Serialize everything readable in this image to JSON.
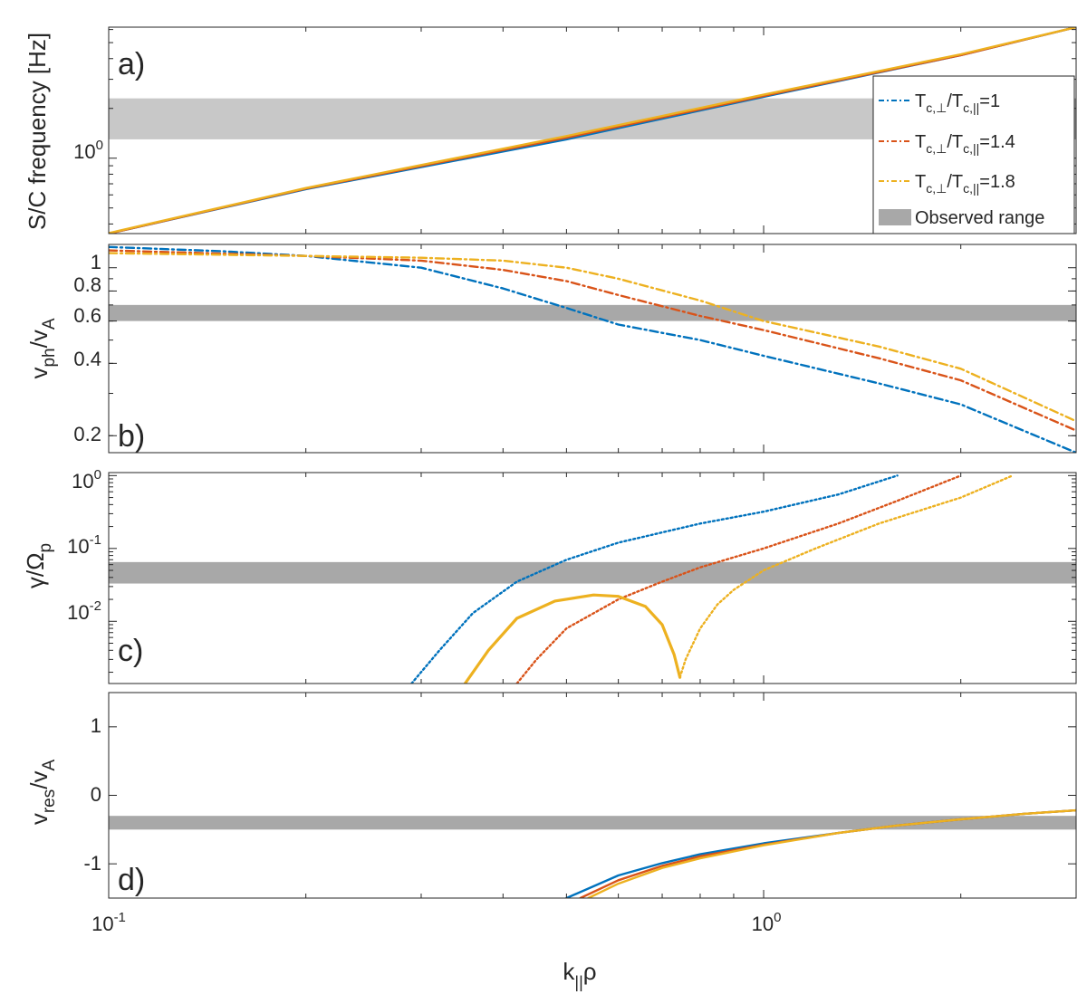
{
  "figure": {
    "xlabel_main": "k",
    "xlabel_sub": "||",
    "xlabel_rho": "ρ",
    "xticks": [
      {
        "value": 0.1,
        "base": "10",
        "exp": "-1"
      },
      {
        "value": 1,
        "base": "10",
        "exp": "0"
      }
    ],
    "xlim": [
      0.1,
      3.0
    ]
  },
  "colors": {
    "blue": "#0072BD",
    "red": "#D95319",
    "yellow": "#EDB120",
    "band_light": "#c8c8c8",
    "band_dark": "#a8a8a8",
    "axis": "#262626"
  },
  "legend": {
    "entries": [
      {
        "sym": "T",
        "sub": "c,⊥",
        "slash": "/",
        "sym2": "T",
        "sub2": "c,||",
        "value": "=1",
        "color": "#0072BD",
        "style": "dashdot"
      },
      {
        "sym": "T",
        "sub": "c,⊥",
        "slash": "/",
        "sym2": "T",
        "sub2": "c,||",
        "value": "=1.4",
        "color": "#D95319",
        "style": "dashdot"
      },
      {
        "sym": "T",
        "sub": "c,⊥",
        "slash": "/",
        "sym2": "T",
        "sub2": "c,||",
        "value": "=1.8",
        "color": "#EDB120",
        "style": "dashdot"
      },
      {
        "label": "Observed range",
        "color": "#a8a8a8",
        "style": "patch"
      }
    ]
  },
  "chart_data": [
    {
      "type": "line",
      "panel": "a)",
      "ylabel": "S/C frequency [Hz]",
      "yscale": "log",
      "ylim": [
        0.35,
        6.2
      ],
      "yticks": [
        {
          "value": 1,
          "base": "10",
          "exp": "0"
        }
      ],
      "observed_band": [
        1.3,
        2.3
      ],
      "series": [
        {
          "name": "Tc⊥/Tc||=1",
          "color": "#0072BD",
          "style": "solid",
          "x": [
            0.1,
            0.2,
            0.5,
            1.0,
            2.0,
            3.0
          ],
          "y": [
            0.35,
            0.65,
            1.3,
            2.35,
            4.2,
            6.2
          ]
        },
        {
          "name": "Tc⊥/Tc||=1.4",
          "color": "#D95319",
          "style": "solid",
          "x": [
            0.1,
            0.2,
            0.5,
            1.0,
            2.0,
            3.0
          ],
          "y": [
            0.35,
            0.655,
            1.33,
            2.38,
            4.2,
            6.2
          ]
        },
        {
          "name": "Tc⊥/Tc||=1.8",
          "color": "#EDB120",
          "style": "solid",
          "x": [
            0.1,
            0.2,
            0.5,
            1.0,
            2.0,
            3.0
          ],
          "y": [
            0.352,
            0.66,
            1.36,
            2.42,
            4.25,
            6.2
          ]
        }
      ]
    },
    {
      "type": "line",
      "panel": "b)",
      "ylabel": "v_ph/v_A",
      "yscale": "log",
      "ylim": [
        0.17,
        1.25
      ],
      "yticks": [
        {
          "value": 0.2,
          "label": "0.2"
        },
        {
          "value": 0.4,
          "label": "0.4"
        },
        {
          "value": 0.6,
          "label": "0.6"
        },
        {
          "value": 0.8,
          "label": "0.8"
        },
        {
          "value": 1,
          "label": "1"
        }
      ],
      "observed_band": [
        0.6,
        0.7
      ],
      "series": [
        {
          "name": "Tc⊥/Tc||=1",
          "color": "#0072BD",
          "style": "dashdot",
          "x": [
            0.1,
            0.15,
            0.2,
            0.3,
            0.4,
            0.5,
            0.6,
            0.8,
            1.0,
            1.5,
            2.0,
            3.0
          ],
          "y": [
            1.22,
            1.17,
            1.12,
            1.0,
            0.82,
            0.68,
            0.58,
            0.5,
            0.43,
            0.33,
            0.27,
            0.17
          ]
        },
        {
          "name": "Tc⊥/Tc||=1.4",
          "color": "#D95319",
          "style": "dashdot",
          "x": [
            0.1,
            0.2,
            0.3,
            0.4,
            0.5,
            0.6,
            0.8,
            1.0,
            1.5,
            2.0,
            3.0
          ],
          "y": [
            1.18,
            1.12,
            1.07,
            0.98,
            0.88,
            0.77,
            0.63,
            0.55,
            0.42,
            0.34,
            0.21
          ]
        },
        {
          "name": "Tc⊥/Tc||=1.8",
          "color": "#EDB120",
          "style": "dashdot",
          "x": [
            0.1,
            0.2,
            0.3,
            0.4,
            0.5,
            0.6,
            0.8,
            1.0,
            1.5,
            2.0,
            3.0
          ],
          "y": [
            1.15,
            1.12,
            1.1,
            1.07,
            1.0,
            0.9,
            0.73,
            0.6,
            0.47,
            0.38,
            0.23
          ]
        }
      ]
    },
    {
      "type": "line",
      "panel": "c)",
      "ylabel": "γ/Ω_p",
      "yscale": "log",
      "ylim": [
        0.0014,
        1.1
      ],
      "yticks": [
        {
          "value": 1,
          "base": "10",
          "exp": "0"
        },
        {
          "value": 0.1,
          "base": "10",
          "exp": "-1"
        },
        {
          "value": 0.01,
          "base": "10",
          "exp": "-2"
        }
      ],
      "observed_band": [
        0.033,
        0.065
      ],
      "series": [
        {
          "name": "Tc⊥/Tc||=1 damping",
          "color": "#0072BD",
          "style": "dotted",
          "x": [
            0.29,
            0.32,
            0.36,
            0.42,
            0.5,
            0.6,
            0.8,
            1.0,
            1.3,
            1.6
          ],
          "y": [
            0.0014,
            0.004,
            0.013,
            0.035,
            0.07,
            0.12,
            0.22,
            0.32,
            0.55,
            1.0
          ]
        },
        {
          "name": "Tc⊥/Tc||=1.4 damping",
          "color": "#D95319",
          "style": "dotted",
          "x": [
            0.42,
            0.45,
            0.5,
            0.6,
            0.7,
            0.8,
            1.0,
            1.3,
            1.6,
            2.0
          ],
          "y": [
            0.0014,
            0.003,
            0.008,
            0.02,
            0.035,
            0.055,
            0.1,
            0.22,
            0.45,
            1.0
          ]
        },
        {
          "name": "Tc⊥/Tc||=1.8 damping",
          "color": "#EDB120",
          "style": "dotted",
          "x": [
            0.745,
            0.76,
            0.8,
            0.85,
            0.9,
            1.0,
            1.2,
            1.5,
            2.0,
            2.4
          ],
          "y": [
            0.0017,
            0.003,
            0.008,
            0.017,
            0.027,
            0.05,
            0.1,
            0.22,
            0.5,
            1.0
          ]
        },
        {
          "name": "Tc⊥/Tc||=1.8 growth",
          "color": "#EDB120",
          "style": "solid",
          "x": [
            0.35,
            0.38,
            0.42,
            0.48,
            0.55,
            0.6,
            0.66,
            0.7,
            0.73,
            0.745
          ],
          "y": [
            0.0014,
            0.004,
            0.011,
            0.019,
            0.023,
            0.022,
            0.016,
            0.009,
            0.0035,
            0.0017
          ]
        }
      ]
    },
    {
      "type": "line",
      "panel": "d)",
      "ylabel": "v_res/v_A",
      "yscale": "linear",
      "ylim": [
        -1.5,
        1.5
      ],
      "yticks": [
        {
          "value": 1,
          "label": "1"
        },
        {
          "value": 0,
          "label": "0"
        },
        {
          "value": -1,
          "label": "-1"
        }
      ],
      "observed_band": [
        -0.5,
        -0.3
      ],
      "series": [
        {
          "name": "Tc⊥/Tc||=1",
          "color": "#0072BD",
          "style": "solid",
          "x": [
            0.5,
            0.6,
            0.7,
            0.8,
            1.0,
            1.3,
            1.6,
            2.0,
            2.5,
            3.0
          ],
          "y": [
            -1.5,
            -1.17,
            -0.99,
            -0.86,
            -0.7,
            -0.55,
            -0.44,
            -0.35,
            -0.27,
            -0.22
          ]
        },
        {
          "name": "Tc⊥/Tc||=1.4",
          "color": "#D95319",
          "style": "solid",
          "x": [
            0.525,
            0.6,
            0.7,
            0.8,
            1.0,
            1.3,
            1.6,
            2.0,
            2.5,
            3.0
          ],
          "y": [
            -1.5,
            -1.24,
            -1.03,
            -0.89,
            -0.72,
            -0.55,
            -0.44,
            -0.35,
            -0.27,
            -0.22
          ]
        },
        {
          "name": "Tc⊥/Tc||=1.8",
          "color": "#EDB120",
          "style": "solid",
          "x": [
            0.54,
            0.6,
            0.7,
            0.8,
            1.0,
            1.3,
            1.6,
            2.0,
            2.5,
            3.0
          ],
          "y": [
            -1.5,
            -1.29,
            -1.06,
            -0.92,
            -0.73,
            -0.55,
            -0.44,
            -0.35,
            -0.27,
            -0.22
          ]
        }
      ]
    }
  ]
}
